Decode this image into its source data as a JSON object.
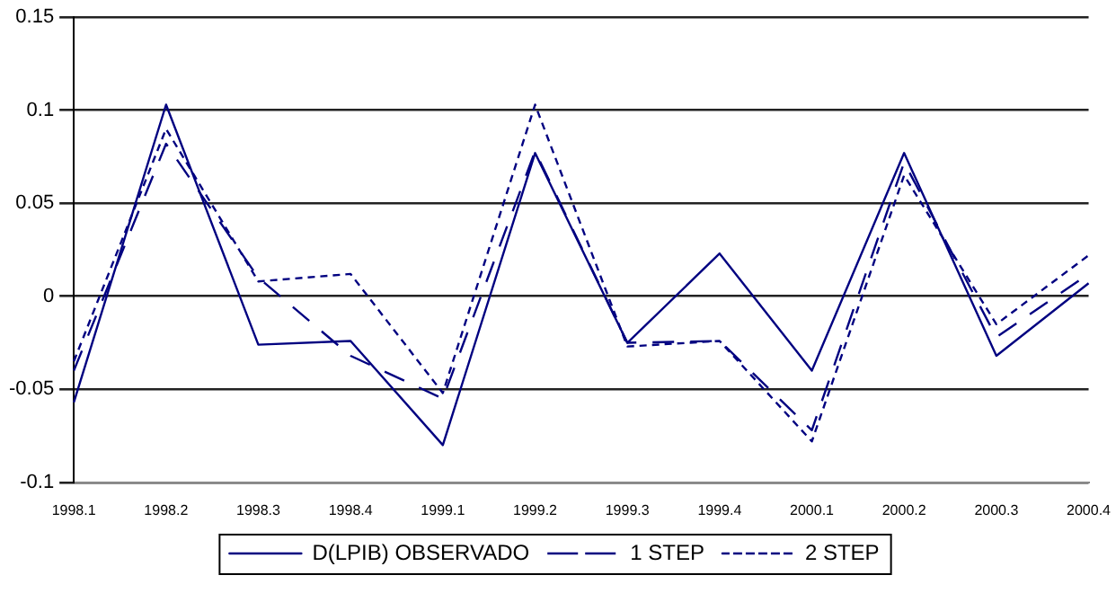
{
  "chart_data": {
    "type": "line",
    "categories": [
      "1998.1",
      "1998.2",
      "1998.3",
      "1998.4",
      "1999.1",
      "1999.2",
      "1999.3",
      "1999.4",
      "2000.1",
      "2000.2",
      "2000.3",
      "2000.4"
    ],
    "series": [
      {
        "name": "D(LPIB) OBSERVADO",
        "color": "#000080",
        "line_style": "solid",
        "values": [
          -0.057,
          0.103,
          -0.026,
          -0.024,
          -0.08,
          0.077,
          -0.025,
          0.023,
          -0.04,
          0.077,
          -0.032,
          0.007
        ]
      },
      {
        "name": "1 STEP",
        "color": "#000080",
        "line_style": "dashed",
        "values": [
          -0.04,
          0.082,
          0.01,
          -0.032,
          -0.055,
          0.078,
          -0.025,
          -0.024,
          -0.072,
          0.072,
          -0.022,
          0.012
        ]
      },
      {
        "name": "2 STEP",
        "color": "#000080",
        "line_style": "dotted",
        "values": [
          -0.035,
          0.09,
          0.008,
          0.012,
          -0.052,
          0.103,
          -0.027,
          -0.024,
          -0.078,
          0.065,
          -0.015,
          0.022
        ]
      }
    ],
    "ylim": [
      -0.1,
      0.15
    ],
    "yticks": [
      -0.1,
      -0.05,
      0,
      0.05,
      0.1,
      0.15
    ],
    "grid": "y",
    "legend": "bottom",
    "marker": "none"
  }
}
